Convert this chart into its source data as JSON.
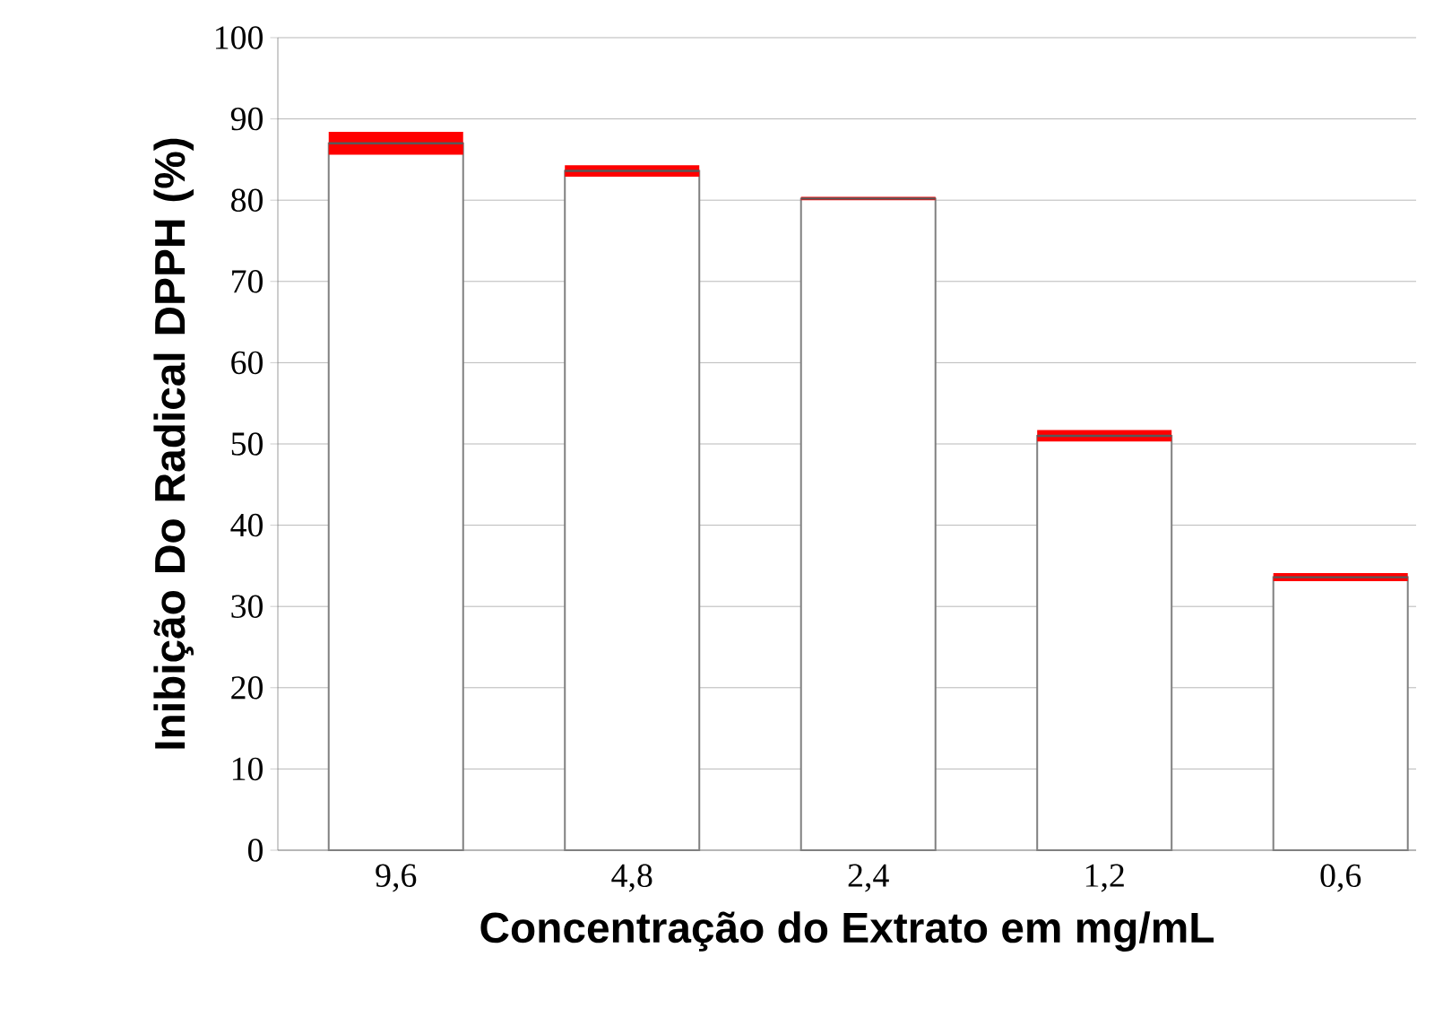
{
  "chart_data": {
    "type": "bar",
    "xlabel": "Concentração do Extrato em mg/mL",
    "ylabel": "Inibição Do Radical DPPH (%)",
    "categories": [
      "9,6",
      "4,8",
      "2,4",
      "1,2",
      "0,6"
    ],
    "values": [
      87,
      83.6,
      80.2,
      51,
      33.6
    ],
    "errors": [
      1.4,
      0.7,
      0.2,
      0.7,
      0.5
    ],
    "color": "#ffffff",
    "ylim": [
      0,
      100
    ],
    "yticks": [
      0,
      10,
      20,
      30,
      40,
      50,
      60,
      70,
      80,
      90,
      100
    ],
    "grid": "y"
  }
}
